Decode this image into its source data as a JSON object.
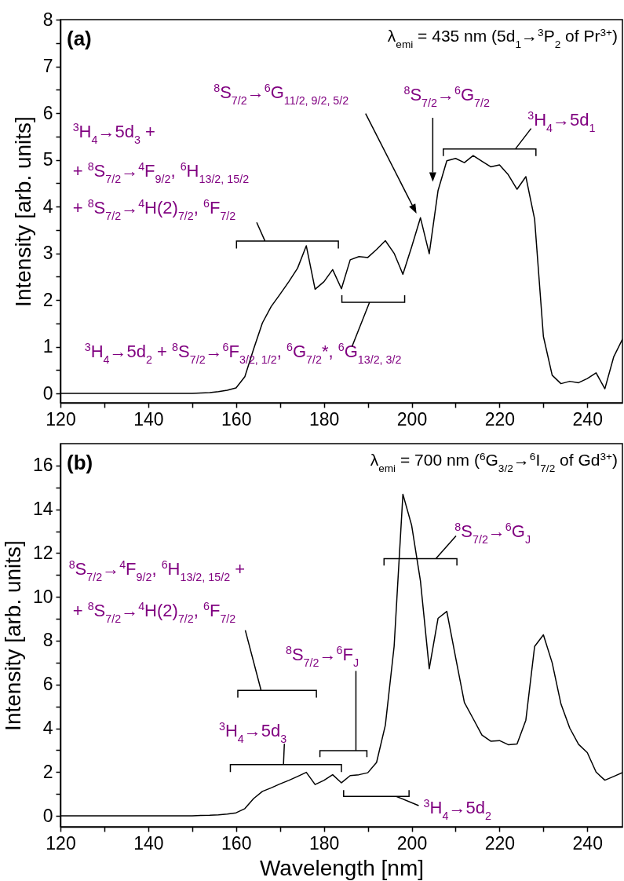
{
  "chart_data": [
    {
      "type": "line",
      "title": "(a)",
      "subtitle": "λ$_{emi}$ = 435 nm (5d$_{1}$→$^{3}$P$_{2}$ of Pr$^{3+}$)",
      "ylabel": "Intensity [arb. units]",
      "x": [
        120,
        130,
        140,
        150,
        152,
        154,
        156,
        158,
        160,
        162,
        164,
        166,
        168,
        170,
        172,
        174,
        176,
        178,
        180,
        182,
        184,
        186,
        188,
        190,
        192,
        194,
        196,
        198,
        200,
        202,
        204,
        206,
        208,
        210,
        212,
        214,
        216,
        218,
        220,
        222,
        224,
        226,
        228,
        230,
        232,
        234,
        236,
        238,
        240,
        242,
        244,
        246,
        248
      ],
      "series": [
        {
          "color": "#000000",
          "values": [
            0,
            0,
            0,
            0,
            0.01,
            0.02,
            0.04,
            0.07,
            0.12,
            0.36,
            0.95,
            1.51,
            1.86,
            2.12,
            2.39,
            2.68,
            3.16,
            2.23,
            2.39,
            2.65,
            2.24,
            2.86,
            2.93,
            2.91,
            3.08,
            3.27,
            3.0,
            2.55,
            3.14,
            3.76,
            2.99,
            4.34,
            4.98,
            5.03,
            4.94,
            5.09,
            4.97,
            4.85,
            4.89,
            4.68,
            4.37,
            4.64,
            3.73,
            1.22,
            0.39,
            0.21,
            0.26,
            0.23,
            0.32,
            0.44,
            0.1,
            0.78,
            1.16
          ]
        }
      ],
      "xlim": [
        120,
        248
      ],
      "ylim": [
        -0.2,
        8
      ],
      "xticks": [
        120,
        {
          "value": 130,
          "label": null
        },
        140,
        {
          "value": 150,
          "label": null
        },
        160,
        {
          "value": 170,
          "label": null
        },
        180,
        {
          "value": 190,
          "label": null
        },
        200,
        {
          "value": 210,
          "label": null
        },
        220,
        {
          "value": 230,
          "label": null
        },
        240
      ],
      "yticks": [
        0,
        {
          "value": 0.5,
          "label": null
        },
        1,
        {
          "value": 1.5,
          "label": null
        },
        2,
        {
          "value": 2.5,
          "label": null
        },
        3,
        {
          "value": 3.5,
          "label": null
        },
        4,
        {
          "value": 4.5,
          "label": null
        },
        5,
        {
          "value": 5.5,
          "label": null
        },
        6,
        {
          "value": 6.5,
          "label": null
        },
        7,
        {
          "value": 7.5,
          "label": null
        },
        8
      ],
      "annotations": [
        "$^{3}$H$_{4}$→5d$_{3}$ +",
        "+ $^{8}$S$_{7/2}$→$^{4}$F$_{9/2}$, $^{6}$H$_{13/2, 15/2}$",
        "+ $^{8}$S$_{7/2}$→$^{4}$H(2)$_{7/2}$, $^{6}$F$_{7/2}$",
        "$^{3}$H$_{4}$→5d$_{2}$ + $^{8}$S$_{7/2}$→$^{6}$F$_{3/2, 1/2}$, $^{6}$G$_{7/2}$*, $^{6}$G$_{13/2, 3/2}$",
        "$^{8}$S$_{7/2}$→$^{6}$G$_{11/2, 9/2, 5/2}$",
        "$^{8}$S$_{7/2}$→$^{6}$G$_{7/2}$",
        "$^{3}$H$_{4}$→5d$_{1}$"
      ]
    },
    {
      "type": "line",
      "title": "(b)",
      "subtitle": "λ$_{emi}$ = 700 nm ($^{6}$G$_{3/2}$→$^{6}$I$_{7/2}$ of Gd$^{3+}$)",
      "xlabel": "Wavelength [nm]",
      "ylabel": "Intensity [arb. units]",
      "x": [
        120,
        130,
        140,
        150,
        152,
        154,
        156,
        158,
        160,
        162,
        164,
        166,
        168,
        170,
        172,
        174,
        176,
        178,
        180,
        182,
        184,
        186,
        188,
        190,
        192,
        194,
        196,
        198,
        200,
        202,
        204,
        206,
        208,
        210,
        212,
        214,
        216,
        218,
        220,
        222,
        224,
        226,
        228,
        230,
        232,
        234,
        236,
        238,
        240,
        242,
        244,
        246,
        248
      ],
      "series": [
        {
          "color": "#000000",
          "values": [
            0,
            0,
            0,
            0,
            0.02,
            0.03,
            0.05,
            0.08,
            0.14,
            0.33,
            0.79,
            1.12,
            1.28,
            1.46,
            1.62,
            1.8,
            1.99,
            1.43,
            1.62,
            1.88,
            1.51,
            1.84,
            1.88,
            1.97,
            2.44,
            4.14,
            7.74,
            14.69,
            13.26,
            10.72,
            6.72,
            9.02,
            9.34,
            7.24,
            5.18,
            4.44,
            3.69,
            3.41,
            3.44,
            3.25,
            3.28,
            4.37,
            7.74,
            8.27,
            6.99,
            5.11,
            4.01,
            3.27,
            2.89,
            2.0,
            1.63,
            1.8,
            1.98
          ]
        }
      ],
      "xlim": [
        120,
        248
      ],
      "ylim": [
        -0.5,
        17
      ],
      "xticks": [
        120,
        {
          "value": 130,
          "label": null
        },
        140,
        {
          "value": 150,
          "label": null
        },
        160,
        {
          "value": 170,
          "label": null
        },
        180,
        {
          "value": 190,
          "label": null
        },
        200,
        {
          "value": 210,
          "label": null
        },
        220,
        {
          "value": 230,
          "label": null
        },
        240
      ],
      "yticks": [
        0,
        {
          "value": 1,
          "label": null
        },
        2,
        {
          "value": 3,
          "label": null
        },
        4,
        {
          "value": 5,
          "label": null
        },
        6,
        {
          "value": 7,
          "label": null
        },
        8,
        {
          "value": 9,
          "label": null
        },
        10,
        {
          "value": 11,
          "label": null
        },
        12,
        {
          "value": 13,
          "label": null
        },
        14,
        {
          "value": 15,
          "label": null
        },
        16
      ],
      "annotations": [
        "$^{8}$S$_{7/2}$→$^{4}$F$_{9/2}$, $^{6}$H$_{13/2, 15/2}$ +",
        "+ $^{8}$S$_{7/2}$→$^{4}$H(2)$_{7/2}$, $^{6}$F$_{7/2}$",
        "$^{8}$S$_{7/2}$→$^{6}$F$_{J}$",
        "$^{3}$H$_{4}$→5d$_{3}$",
        "$^{8}$S$_{7/2}$→$^{6}$G$_{J}$",
        "$^{3}$H$_{4}$→5d$_{2}$"
      ]
    }
  ]
}
